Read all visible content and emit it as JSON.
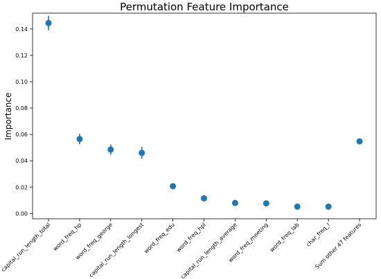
{
  "chart_data": {
    "type": "scatter",
    "title": "Permutation Feature Importance",
    "xlabel": "",
    "ylabel": "Importance",
    "ylim": [
      -0.004,
      0.152
    ],
    "yticks": [
      0.0,
      0.02,
      0.04,
      0.06,
      0.08,
      0.1,
      0.12,
      0.14
    ],
    "ytick_labels": [
      "0.00",
      "0.02",
      "0.04",
      "0.06",
      "0.08",
      "0.10",
      "0.12",
      "0.14"
    ],
    "grid": false,
    "legend": "none",
    "color": "#1f77b4",
    "categories": [
      "capital_run_length_total",
      "word_freq_hp",
      "word_freq_george",
      "capital_run_length_longest",
      "word_freq_edu",
      "word_freq_hpl",
      "capital_run_length_average",
      "word_freq_meeting",
      "word_freq_lab",
      "char_freq_!",
      "Sum other 47 features"
    ],
    "values": [
      0.1445,
      0.0565,
      0.0485,
      0.046,
      0.0207,
      0.0115,
      0.008,
      0.0077,
      0.0052,
      0.0052,
      0.0547
    ],
    "errors": [
      0.0055,
      0.004,
      0.004,
      0.0045,
      0.0008,
      0.0008,
      0.0007,
      0.0007,
      0.0007,
      0.0007,
      0.0
    ]
  }
}
